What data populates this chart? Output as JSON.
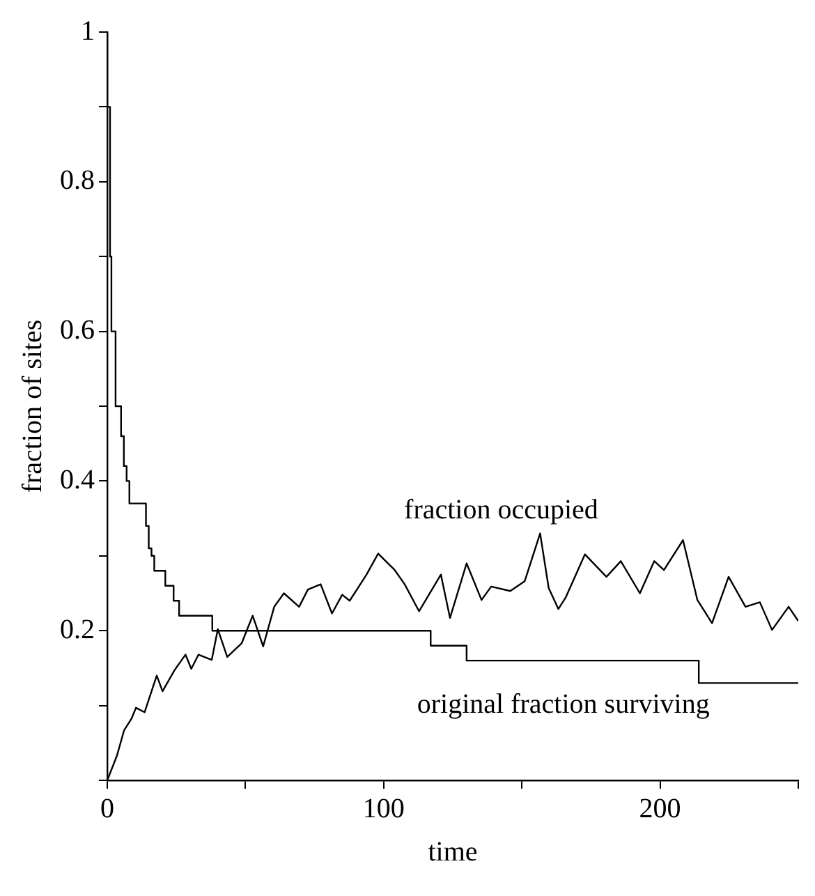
{
  "chart_data": {
    "type": "line",
    "xlabel": "time",
    "ylabel": "fraction of sites",
    "xlim": [
      0,
      250
    ],
    "ylim": [
      0,
      1
    ],
    "xticks": [
      0,
      {
        "value": 50,
        "label": null
      },
      100,
      {
        "value": 150,
        "label": null
      },
      200,
      {
        "value": 250,
        "label": null
      }
    ],
    "yticks": [
      {
        "value": 0,
        "label": null
      },
      {
        "value": 0.1,
        "label": null
      },
      0.2,
      {
        "value": 0.3,
        "label": null
      },
      0.4,
      {
        "value": 0.5,
        "label": null
      },
      0.6,
      {
        "value": 0.7,
        "label": null
      },
      0.8,
      {
        "value": 0.9,
        "label": null
      },
      1
    ],
    "grid": false,
    "legend": false,
    "marker": "none",
    "line_style": "solid",
    "series": [
      {
        "name": "fraction occupied",
        "color": "#000000",
        "x": [
          0,
          3.5,
          6.1,
          8.7,
          10.4,
          13.5,
          17.9,
          20,
          24.3,
          28.3,
          30.4,
          33,
          37.8,
          40,
          43.4,
          48.6,
          52.6,
          56.4,
          60.4,
          63.9,
          69.4,
          72.6,
          77.2,
          81.3,
          85,
          87.7,
          93.8,
          98,
          104,
          107.6,
          112.8,
          120.7,
          124,
          130,
          135.4,
          138.9,
          145.8,
          151,
          156.6,
          159.7,
          163.2,
          165.8,
          172.8,
          180.6,
          185.8,
          192.7,
          197.9,
          201.4,
          208.3,
          213.5,
          218.8,
          224.8,
          230.9,
          236.1,
          240.5,
          246.5,
          250
        ],
        "values": [
          0,
          0.033,
          0.067,
          0.082,
          0.097,
          0.091,
          0.14,
          0.119,
          0.147,
          0.168,
          0.149,
          0.168,
          0.161,
          0.202,
          0.165,
          0.183,
          0.22,
          0.179,
          0.232,
          0.25,
          0.232,
          0.255,
          0.262,
          0.223,
          0.248,
          0.24,
          0.275,
          0.303,
          0.281,
          0.262,
          0.226,
          0.275,
          0.217,
          0.29,
          0.241,
          0.259,
          0.253,
          0.266,
          0.33,
          0.257,
          0.229,
          0.244,
          0.302,
          0.272,
          0.293,
          0.25,
          0.293,
          0.281,
          0.321,
          0.241,
          0.21,
          0.272,
          0.232,
          0.238,
          0.201,
          0.232,
          0.213
        ]
      },
      {
        "name": "original fraction surviving",
        "type": "step",
        "color": "#000000",
        "x": [
          0,
          1,
          1.5,
          3,
          5,
          6,
          7,
          8,
          14,
          15,
          16,
          17,
          21,
          24,
          26,
          38,
          117,
          130,
          214,
          249,
          250
        ],
        "values": [
          1,
          0.9,
          0.7,
          0.6,
          0.5,
          0.46,
          0.42,
          0.4,
          0.37,
          0.34,
          0.31,
          0.3,
          0.28,
          0.26,
          0.24,
          0.22,
          0.2,
          0.18,
          0.16,
          0.13,
          0.13
        ]
      }
    ]
  }
}
